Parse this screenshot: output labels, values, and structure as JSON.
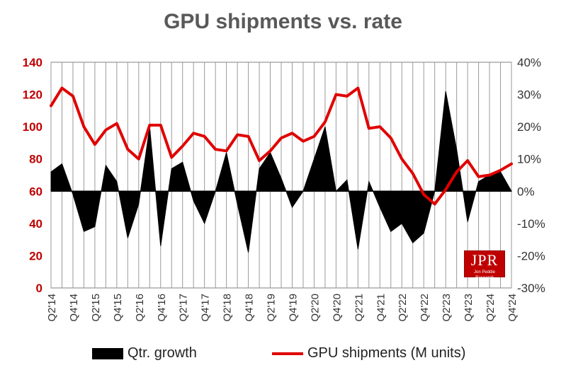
{
  "chart_data": {
    "type": "line+area",
    "title": "GPU shipments vs. rate",
    "x": [
      "Q2'14",
      "Q3'14",
      "Q4'14",
      "Q1'15",
      "Q2'15",
      "Q3'15",
      "Q4'15",
      "Q1'16",
      "Q2'16",
      "Q3'16",
      "Q4'16",
      "Q1'17",
      "Q2'17",
      "Q3'17",
      "Q4'17",
      "Q1'18",
      "Q2'18",
      "Q3'18",
      "Q4'18",
      "Q1'19",
      "Q2'19",
      "Q3'19",
      "Q4'19",
      "Q1'20",
      "Q2'20",
      "Q3'20",
      "Q4'20",
      "Q1'21",
      "Q2'21",
      "Q3'21",
      "Q4'21",
      "Q1'22",
      "Q2'22",
      "Q3'22",
      "Q4'22",
      "Q1'23",
      "Q2'23",
      "Q3'23",
      "Q4'23",
      "Q1'24",
      "Q2'24",
      "Q3'24",
      "Q4'24"
    ],
    "x_tick_labels": [
      "Q2'14",
      "Q4'14",
      "Q2'15",
      "Q4'15",
      "Q2'16",
      "Q4'16",
      "Q2'17",
      "Q4'17",
      "Q2'18",
      "Q4'18",
      "Q2'19",
      "Q4'19",
      "Q2'20",
      "Q4'20",
      "Q2'21",
      "Q4'21",
      "Q2'22",
      "Q4'22",
      "Q2'23",
      "Q4'23",
      "Q2'24",
      "Q4'24"
    ],
    "series": [
      {
        "name": "Qtr. growth",
        "kind": "area",
        "axis": "right",
        "color": "#000000",
        "values": [
          6,
          8.5,
          -1,
          -12.5,
          -11,
          8,
          3,
          -14.5,
          -4,
          20,
          -17,
          7,
          9,
          -3,
          -10,
          0,
          12,
          -4,
          -19,
          7,
          12,
          4,
          -5,
          0,
          10,
          20,
          0,
          3.5,
          -18,
          3,
          -5,
          -12.5,
          -10,
          -16,
          -13,
          0,
          31,
          13,
          -9.5,
          3,
          5,
          6,
          0
        ]
      },
      {
        "name": "GPU shipments (M units)",
        "kind": "line",
        "axis": "left",
        "color": "#e00000",
        "values": [
          113,
          124,
          119,
          100,
          89,
          98,
          102,
          86,
          80,
          101,
          101,
          81,
          88,
          96,
          94,
          86,
          85,
          95,
          94,
          79,
          85,
          93,
          96,
          91,
          94,
          103,
          120,
          119,
          124,
          99,
          100,
          93,
          80,
          71,
          58,
          52,
          61,
          72,
          79,
          69,
          70,
          73,
          77
        ]
      }
    ],
    "y_left": {
      "min": 0,
      "max": 140,
      "step": 20,
      "tick_labels": [
        "0",
        "20",
        "40",
        "60",
        "80",
        "100",
        "120",
        "140"
      ],
      "color": "#c00000"
    },
    "y_right": {
      "min": -30,
      "max": 40,
      "step": 10,
      "tick_labels": [
        "-30%",
        "-20%",
        "-10%",
        "0%",
        "10%",
        "20%",
        "30%",
        "40%"
      ],
      "color": "#333333"
    },
    "grid": {
      "vertical": true,
      "horizontal": false
    },
    "legend_position": "bottom"
  },
  "logo": {
    "text": "JPR",
    "subtitle": "Jon Peddie Research"
  }
}
